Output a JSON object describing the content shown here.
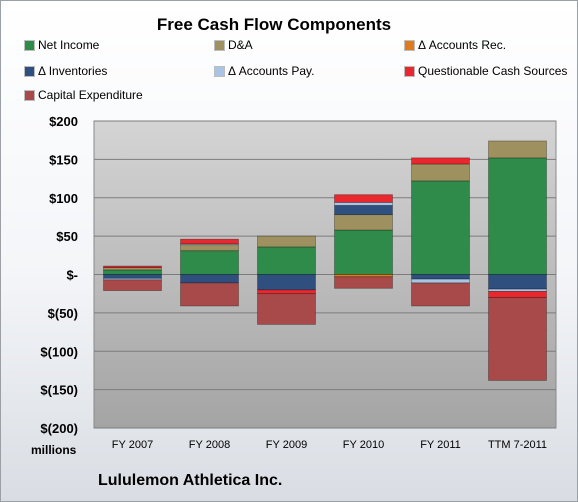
{
  "chart_data": {
    "type": "bar",
    "stacked": true,
    "title": "Free Cash Flow Components",
    "categories": [
      "FY 2007",
      "FY 2008",
      "FY 2009",
      "FY 2010",
      "FY 2011",
      "TTM 7-2011"
    ],
    "series": [
      {
        "name": "Net Income",
        "color": "#2e8b4a",
        "values": [
          6,
          31,
          36,
          58,
          122,
          152
        ]
      },
      {
        "name": "D&A",
        "color": "#9f9060",
        "values": [
          3,
          8,
          14,
          20,
          22,
          22
        ]
      },
      {
        "name": "Δ Accounts Rec.",
        "color": "#e07a1f",
        "values": [
          0,
          0,
          0,
          -3,
          0,
          0
        ]
      },
      {
        "name": "Δ Inventories",
        "color": "#2f4f7f",
        "values": [
          -5,
          -11,
          -20,
          12,
          -6,
          -19
        ]
      },
      {
        "name": "Δ Accounts Pay.",
        "color": "#a9c4e4",
        "values": [
          -2,
          1,
          0,
          4,
          -5,
          -3
        ]
      },
      {
        "name": "Questionable Cash Sources",
        "color": "#e8272e",
        "values": [
          2,
          6,
          -5,
          10,
          8,
          -8
        ]
      },
      {
        "name": "Capital Expenditure",
        "color": "#a84a4a",
        "values": [
          -14,
          -30,
          -40,
          -15,
          -30,
          -108
        ]
      }
    ],
    "yticks": [
      "$200",
      "$150",
      "$100",
      "$50",
      "$-",
      "$(50)",
      "$(100)",
      "$(150)",
      "$(200)"
    ],
    "ylim": [
      -200,
      200
    ],
    "ylabel": "",
    "units": "millions",
    "grid": true,
    "legend_position": "top"
  },
  "footer": {
    "company": "Lululemon Athletica Inc."
  }
}
